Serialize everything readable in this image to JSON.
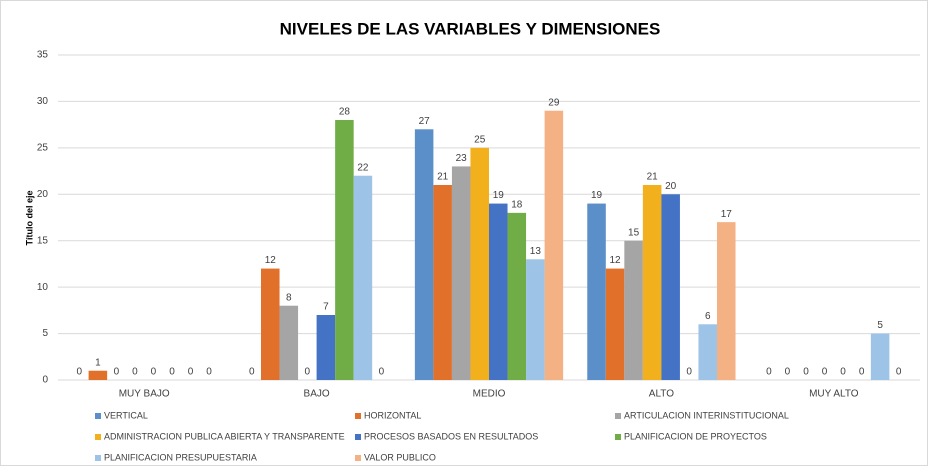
{
  "chart_data": {
    "type": "bar",
    "title": "NIVELES DE LAS VARIABLES Y DIMENSIONES",
    "y_axis_label": "Título del eje",
    "categories": [
      "MUY BAJO",
      "BAJO",
      "MEDIO",
      "ALTO",
      "MUY ALTO"
    ],
    "series": [
      {
        "name": "VERTICAL",
        "color": "#5b8fc9",
        "values": [
          0,
          0,
          27,
          19,
          0
        ]
      },
      {
        "name": "HORIZONTAL",
        "color": "#e0702a",
        "values": [
          1,
          12,
          21,
          12,
          0
        ]
      },
      {
        "name": "ARTICULACION INTERINSTITUCIONAL",
        "color": "#a5a5a5",
        "values": [
          0,
          8,
          23,
          15,
          0
        ]
      },
      {
        "name": "ADMINISTRACION PUBLICA ABIERTA Y TRANSPARENTE",
        "color": "#f2b01c",
        "values": [
          0,
          0,
          25,
          21,
          0
        ]
      },
      {
        "name": "PROCESOS BASADOS EN RESULTADOS",
        "color": "#4472c4",
        "values": [
          0,
          7,
          19,
          20,
          0
        ]
      },
      {
        "name": "PLANIFICACION DE PROYECTOS",
        "color": "#70ad47",
        "values": [
          0,
          28,
          18,
          0,
          0
        ]
      },
      {
        "name": "PLANIFICACION PRESUPUESTARIA",
        "color": "#9dc3e6",
        "values": [
          0,
          22,
          13,
          6,
          5
        ]
      },
      {
        "name": "VALOR PUBLICO",
        "color": "#f4b183",
        "values": [
          0,
          0,
          29,
          17,
          0
        ]
      }
    ],
    "ylim": [
      0,
      35
    ],
    "yticks": [
      0,
      5,
      10,
      15,
      20,
      25,
      30,
      35
    ],
    "grid": true,
    "legend": "bottom",
    "data_labels": true
  }
}
